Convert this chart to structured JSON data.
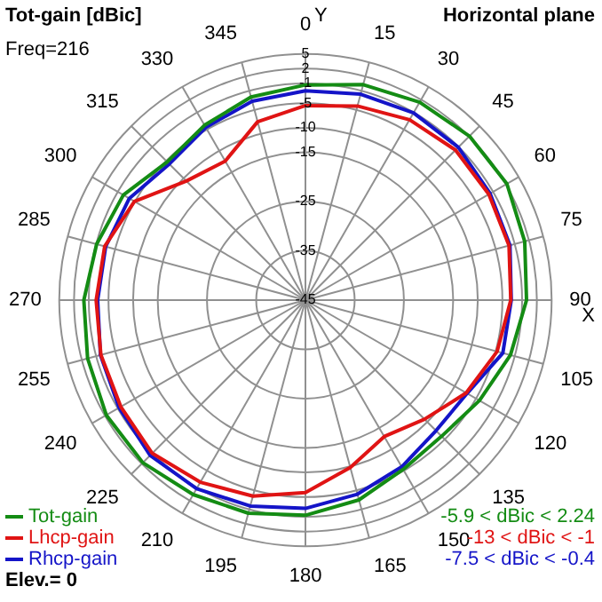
{
  "chart_data": {
    "type": "radar",
    "title": "Tot-gain [dBic]",
    "subtitle": "Horizontal plane",
    "xlabel": "X",
    "ylabel": "Y",
    "categories": [
      "0",
      "15",
      "30",
      "45",
      "60",
      "75",
      "90",
      "105",
      "120",
      "135",
      "150",
      "165",
      "180",
      "195",
      "210",
      "225",
      "240",
      "255",
      "270",
      "285",
      "300",
      "315",
      "330",
      "345"
    ],
    "series": [
      {
        "name": "Tot-gain",
        "color": "#148c14",
        "values": [
          -1.3,
          0.3,
          1.4,
          2.1,
          2.24,
          1.1,
          -0.1,
          -1.9,
          -4.2,
          -5.9,
          -5.3,
          -3.0,
          -1.3,
          -0.2,
          0.6,
          1.7,
          1.7,
          0.8,
          0.0,
          -1.1,
          -2.3,
          -5.3,
          -4.0,
          -2.3
        ]
      },
      {
        "name": "Lhcp-gain",
        "color": "#e01414",
        "values": [
          -5.5,
          -4.2,
          -2.7,
          -1.9,
          -2.0,
          -2.2,
          -3.3,
          -4.7,
          -7.3,
          -10.8,
          -13,
          -9.8,
          -5.9,
          -3.8,
          -2.3,
          -1,
          -1.7,
          -2.0,
          -2.5,
          -2.8,
          -4.9,
          -10.8,
          -12.4,
          -7.5
        ]
      },
      {
        "name": "Rhcp-gain",
        "color": "#1414c8",
        "values": [
          -2.5,
          -1.7,
          -1.1,
          -1.1,
          -1.7,
          -2.0,
          -3.2,
          -3.5,
          -7.1,
          -7.5,
          -5.9,
          -4.2,
          -2.7,
          -1.7,
          -0.8,
          -0.4,
          -1.3,
          -1.9,
          -2.8,
          -3.0,
          -3.7,
          -5.9,
          -4.5,
          -3.2
        ]
      }
    ],
    "ylim": [
      -45,
      5
    ],
    "yticks": [
      -45,
      -35,
      -25,
      -15,
      -10,
      -5,
      -1,
      2,
      5
    ],
    "grid": true,
    "legend": "bottom left",
    "marker": "none",
    "line_style": "solid",
    "annotations": [
      "-5.9 < dBic < 2.24",
      "-13 < dBic < -1",
      "-7.5 < dBic < -0.4",
      "Freq=216",
      "Elev.= 0"
    ]
  }
}
